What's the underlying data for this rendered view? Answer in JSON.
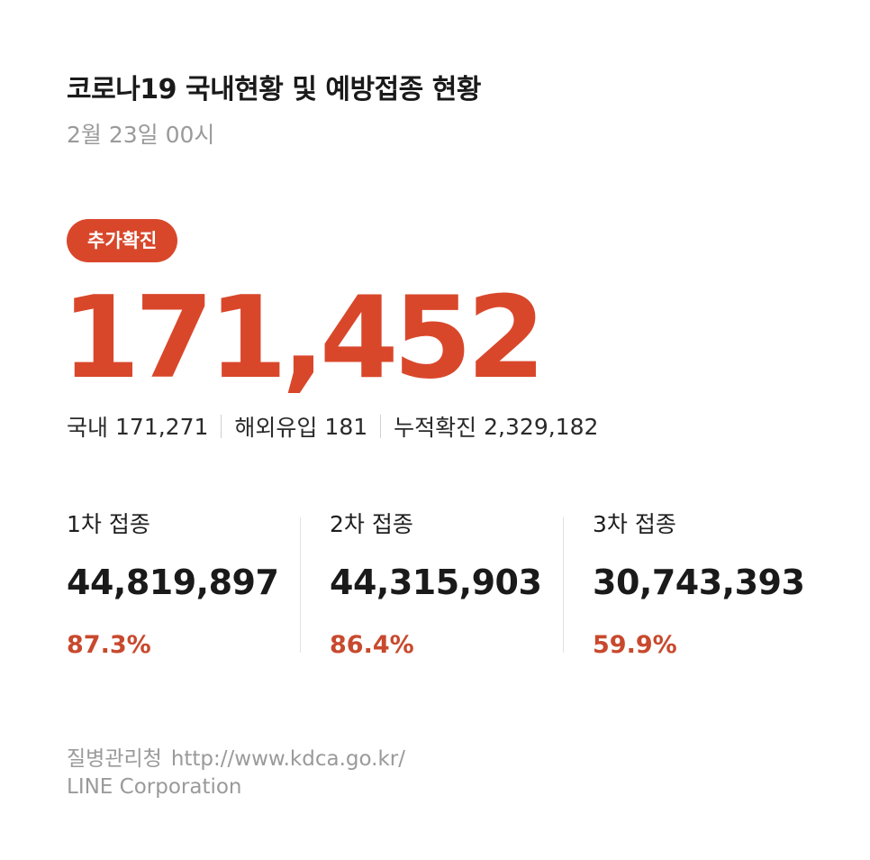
{
  "header": {
    "title": "코로나19 국내현황 및 예방접종 현황",
    "date": "2월 23일 00시"
  },
  "confirmed": {
    "badge_label": "추가확진",
    "new_cases": "171,452",
    "domestic_label": "국내",
    "domestic_value": "171,271",
    "imported_label": "해외유입",
    "imported_value": "181",
    "cumulative_label": "누적확진",
    "cumulative_value": "2,329,182"
  },
  "vaccination": [
    {
      "label": "1차 접종",
      "count": "44,819,897",
      "percent": "87.3%"
    },
    {
      "label": "2차 접종",
      "count": "44,315,903",
      "percent": "86.4%"
    },
    {
      "label": "3차 접종",
      "count": "30,743,393",
      "percent": "59.9%"
    }
  ],
  "footer": {
    "source_name": "질병관리청",
    "source_url": "http://www.kdca.go.kr/",
    "company": "LINE Corporation"
  },
  "colors": {
    "accent": "#d9472b",
    "percent": "#c8492d",
    "muted": "#9a9a9a",
    "text": "#1e1e1e"
  }
}
